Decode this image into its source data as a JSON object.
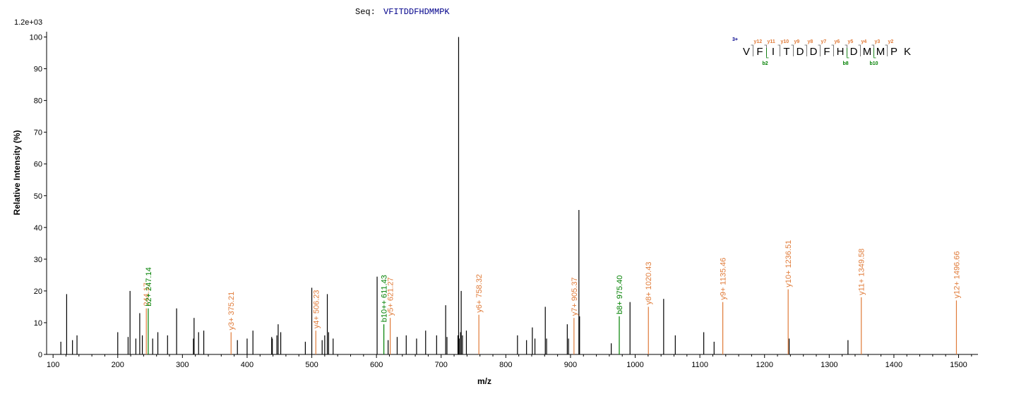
{
  "chart_data": {
    "type": "bar",
    "sequence_label": "Seq:",
    "sequence": "VFITDDFHDMMPK",
    "scale_label": "1.2e+03",
    "xlabel": "m/z",
    "ylabel": "Relative   Intensity (%)",
    "xlim": [
      90,
      1530
    ],
    "ylim": [
      0,
      101
    ],
    "xticks": [
      100,
      200,
      300,
      400,
      500,
      600,
      700,
      800,
      900,
      1000,
      1100,
      1200,
      1300,
      1400,
      1500
    ],
    "yticks": [
      0,
      10,
      20,
      30,
      40,
      50,
      60,
      70,
      80,
      90,
      100
    ],
    "colors": {
      "unassigned": "#000000",
      "b_ion": "#008000",
      "y_ion": "#e07b39",
      "charge": "#00008b"
    },
    "peaks": [
      [
        112,
        4
      ],
      [
        121,
        19
      ],
      [
        130,
        4.5
      ],
      [
        137,
        6
      ],
      [
        200,
        7
      ],
      [
        216,
        5.5
      ],
      [
        219,
        20
      ],
      [
        228,
        5
      ],
      [
        234,
        13
      ],
      [
        238,
        6
      ],
      [
        254,
        5
      ],
      [
        262,
        7
      ],
      [
        277,
        6
      ],
      [
        291,
        14.5
      ],
      [
        317,
        5
      ],
      [
        318,
        11.5
      ],
      [
        325,
        7
      ],
      [
        333,
        7.5
      ],
      [
        385,
        4.5
      ],
      [
        400,
        5
      ],
      [
        409,
        7.5
      ],
      [
        438,
        5.5
      ],
      [
        439,
        5
      ],
      [
        446,
        6
      ],
      [
        448,
        9.5
      ],
      [
        452,
        7
      ],
      [
        490,
        4
      ],
      [
        500,
        21
      ],
      [
        516,
        4.5
      ],
      [
        520,
        6
      ],
      [
        524,
        19
      ],
      [
        526,
        7
      ],
      [
        533,
        5
      ],
      [
        601,
        24.5
      ],
      [
        618,
        4.5
      ],
      [
        632,
        5.5
      ],
      [
        646,
        6
      ],
      [
        662,
        5
      ],
      [
        676,
        7.5
      ],
      [
        693,
        6
      ],
      [
        707,
        15.5
      ],
      [
        709,
        5.5
      ],
      [
        726,
        6
      ],
      [
        727,
        100
      ],
      [
        728,
        5
      ],
      [
        730,
        7
      ],
      [
        731,
        20
      ],
      [
        733,
        6
      ],
      [
        739,
        7.5
      ],
      [
        818,
        6
      ],
      [
        832,
        4.5
      ],
      [
        841,
        8.5
      ],
      [
        845,
        5
      ],
      [
        861,
        15
      ],
      [
        863,
        5
      ],
      [
        895,
        9.5
      ],
      [
        897,
        5
      ],
      [
        913,
        45.5
      ],
      [
        914,
        12
      ],
      [
        963,
        3.5
      ],
      [
        992,
        16.5
      ],
      [
        1044,
        17.5
      ],
      [
        1062,
        6
      ],
      [
        1106,
        7
      ],
      [
        1122,
        4
      ],
      [
        1238,
        5
      ],
      [
        1329,
        4.5
      ]
    ],
    "annotations": [
      {
        "mz": 244.17,
        "intensity": 14.5,
        "label": "244.17",
        "ion": "y"
      },
      {
        "mz": 247.14,
        "intensity": 14.5,
        "label": "b2+ 247.14",
        "ion": "b"
      },
      {
        "mz": 375.21,
        "intensity": 7,
        "label": "y3+ 375.21",
        "ion": "y"
      },
      {
        "mz": 506.23,
        "intensity": 7.5,
        "label": "y4+ 506.23",
        "ion": "y"
      },
      {
        "mz": 611.43,
        "intensity": 9.5,
        "label": "b10++ 611.43",
        "ion": "b"
      },
      {
        "mz": 621.27,
        "intensity": 11.5,
        "label": "y5+ 621.27",
        "ion": "y"
      },
      {
        "mz": 758.32,
        "intensity": 12.5,
        "label": "y6+ 758.32",
        "ion": "y"
      },
      {
        "mz": 905.37,
        "intensity": 11.5,
        "label": "y7+ 905.37",
        "ion": "y"
      },
      {
        "mz": 975.4,
        "intensity": 12,
        "label": "b8+ 975.40",
        "ion": "b"
      },
      {
        "mz": 1020.43,
        "intensity": 15,
        "label": "y8+ 1020.43",
        "ion": "y"
      },
      {
        "mz": 1135.46,
        "intensity": 16.5,
        "label": "y9+ 1135.46",
        "ion": "y"
      },
      {
        "mz": 1236.51,
        "intensity": 20.5,
        "label": "y10+ 1236.51",
        "ion": "y"
      },
      {
        "mz": 1349.58,
        "intensity": 18,
        "label": "y11+ 1349.58",
        "ion": "y"
      },
      {
        "mz": 1496.66,
        "intensity": 17,
        "label": "y12+ 1496.66",
        "ion": "y"
      }
    ],
    "peptide_map": {
      "charge": "3+",
      "letters": [
        "V",
        "F",
        "I",
        "T",
        "D",
        "D",
        "F",
        "H",
        "D",
        "M",
        "M",
        "P",
        "K"
      ],
      "y_ions": [
        "y12",
        "y11",
        "y10",
        "y9",
        "y8",
        "y7",
        "y6",
        "y5",
        "y4",
        "y3",
        "y2"
      ],
      "b_ions": [
        "b2",
        "b8",
        "b10"
      ]
    }
  }
}
